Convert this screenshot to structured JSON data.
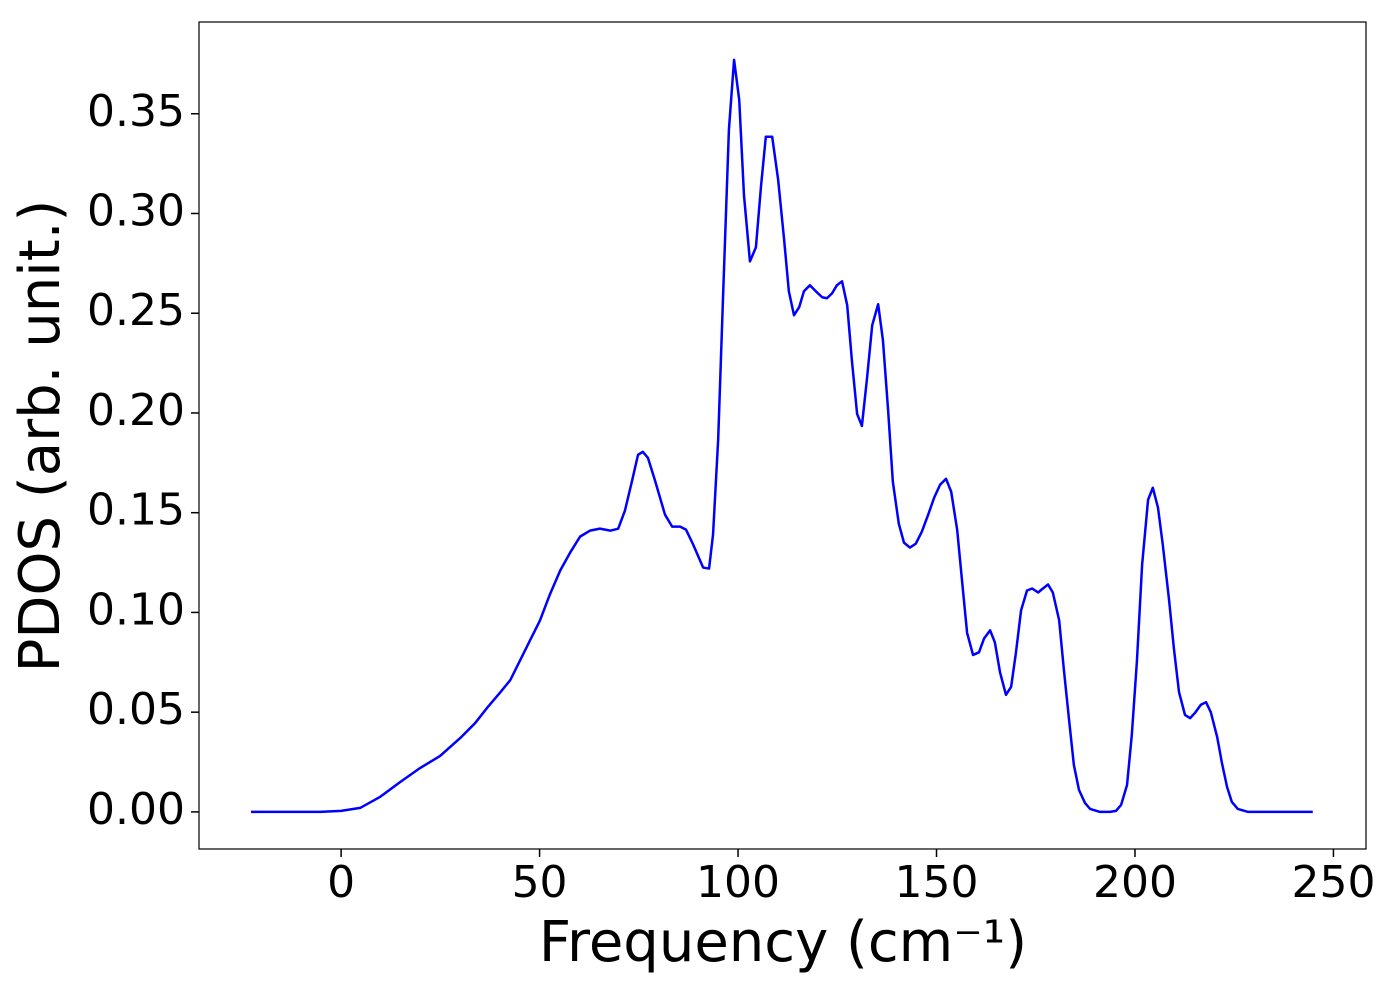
{
  "chart_data": {
    "type": "line",
    "xlabel": "Frequency (cm⁻¹)",
    "ylabel": "PDOS (arb. unit.)",
    "color": "#0000ff",
    "xlim": [
      -35.8,
      258.2
    ],
    "ylim": [
      -0.0186,
      0.396
    ],
    "xticks": [
      0,
      50,
      100,
      150,
      200,
      250
    ],
    "yticks": [
      {
        "value": 0,
        "label": "0.00"
      },
      {
        "value": 0.05,
        "label": "0.05"
      },
      {
        "value": 0.1,
        "label": "0.10"
      },
      {
        "value": 0.15,
        "label": "0.15"
      },
      {
        "value": 0.2,
        "label": "0.20"
      },
      {
        "value": 0.25,
        "label": "0.25"
      },
      {
        "value": 0.3,
        "label": "0.30"
      },
      {
        "value": 0.35,
        "label": "0.35"
      }
    ],
    "x": [
      -22.7,
      -5.3,
      0,
      4.8,
      9.8,
      14.9,
      19.9,
      24.9,
      30,
      33.8,
      37,
      40,
      42.6,
      45.1,
      47.6,
      50.1,
      52.6,
      55.2,
      57.7,
      60.2,
      62.7,
      65.2,
      67.8,
      69.8,
      71.5,
      73.3,
      74.8,
      76,
      77.3,
      79.1,
      81.6,
      83.4,
      85.4,
      86.9,
      88.7,
      91.2,
      92.7,
      93.7,
      95,
      96.2,
      97.7,
      99,
      100.3,
      101.5,
      103,
      104.5,
      105.8,
      107,
      108.6,
      110.1,
      111.6,
      112.8,
      114.1,
      115.4,
      116.6,
      118.1,
      119.6,
      121.2,
      122.4,
      123.7,
      124.9,
      126.2,
      127.5,
      128.7,
      130,
      131.2,
      132.5,
      133.8,
      135.3,
      136.5,
      137.8,
      139,
      140.5,
      141.8,
      143.3,
      144.8,
      146.3,
      147.9,
      149.4,
      150.9,
      152.4,
      153.7,
      155.2,
      156.4,
      157.7,
      159.2,
      160.7,
      162,
      163.5,
      164.7,
      166,
      167.5,
      168.8,
      170,
      171.3,
      172.8,
      174.1,
      175.6,
      176.8,
      178.1,
      179.3,
      180.9,
      182.1,
      183.4,
      184.6,
      185.9,
      187.4,
      188.7,
      191.2,
      193.7,
      195.2,
      196.5,
      198,
      199.2,
      200.5,
      201.8,
      203.3,
      204.5,
      205.8,
      207,
      208.6,
      209.8,
      211.1,
      212.6,
      213.9,
      215.1,
      216.6,
      217.9,
      219.1,
      220.7,
      221.9,
      223.2,
      224.4,
      225.9,
      228.5,
      244.8
    ],
    "values": [
      0,
      0,
      0.0005,
      0.002,
      0.0075,
      0.015,
      0.022,
      0.028,
      0.037,
      0.0446,
      0.0527,
      0.0597,
      0.066,
      0.076,
      0.086,
      0.096,
      0.109,
      0.121,
      0.13,
      0.138,
      0.141,
      0.142,
      0.141,
      0.142,
      0.151,
      0.166,
      0.179,
      0.1805,
      0.1775,
      0.166,
      0.149,
      0.143,
      0.143,
      0.1415,
      0.134,
      0.1225,
      0.122,
      0.139,
      0.187,
      0.257,
      0.342,
      0.377,
      0.357,
      0.309,
      0.276,
      0.283,
      0.314,
      0.3385,
      0.3385,
      0.317,
      0.287,
      0.261,
      0.249,
      0.253,
      0.261,
      0.264,
      0.261,
      0.258,
      0.2575,
      0.26,
      0.264,
      0.266,
      0.254,
      0.226,
      0.1995,
      0.1935,
      0.2175,
      0.244,
      0.2545,
      0.2365,
      0.2015,
      0.1655,
      0.1445,
      0.135,
      0.1325,
      0.1345,
      0.1405,
      0.149,
      0.1575,
      0.164,
      0.167,
      0.1605,
      0.1415,
      0.1165,
      0.0898,
      0.0787,
      0.08,
      0.087,
      0.091,
      0.085,
      0.07,
      0.0587,
      0.0627,
      0.0797,
      0.101,
      0.111,
      0.112,
      0.11,
      0.112,
      0.114,
      0.11,
      0.096,
      0.071,
      0.046,
      0.0236,
      0.011,
      0.0045,
      0.0015,
      0,
      0,
      0.0005,
      0.0035,
      0.0135,
      0.0386,
      0.076,
      0.124,
      0.1565,
      0.1625,
      0.1525,
      0.134,
      0.106,
      0.082,
      0.06,
      0.0486,
      0.047,
      0.0496,
      0.0537,
      0.055,
      0.05,
      0.0376,
      0.0246,
      0.0125,
      0.005,
      0.0015,
      0,
      0
    ]
  }
}
